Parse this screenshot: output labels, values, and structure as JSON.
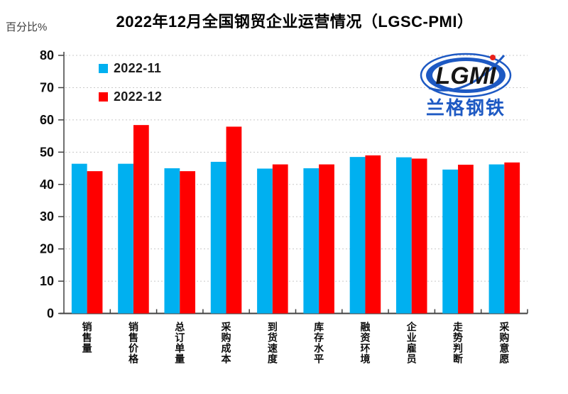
{
  "chart_data": {
    "type": "bar",
    "title": "2022年12月全国钢贸企业运营情况（LGSC-PMI）",
    "ylabel": "百分比%",
    "xlabel": "",
    "categories": [
      "销售量",
      "销售价格",
      "总订单量",
      "采购成本",
      "到货速度",
      "库存水平",
      "融资环境",
      "企业雇员",
      "走势判断",
      "采购意愿"
    ],
    "series": [
      {
        "name": "2022-11",
        "color": "#00B0F0",
        "values": [
          46.4,
          46.4,
          45.0,
          47.0,
          44.9,
          45.0,
          48.5,
          48.4,
          44.6,
          46.2
        ]
      },
      {
        "name": "2022-12",
        "color": "#FF0000",
        "values": [
          44.1,
          58.4,
          44.1,
          57.9,
          46.2,
          46.2,
          49.0,
          48.0,
          46.1,
          46.8
        ]
      }
    ],
    "ylim": [
      0,
      80
    ],
    "ytick_step": 10,
    "yticks": [
      0,
      10,
      20,
      30,
      40,
      50,
      60,
      70,
      80
    ],
    "grid": "horizontal dotted",
    "grid_color": "#c8c8c8",
    "axis_color": "#404040",
    "tick_label_color": "#0d0d0d",
    "legend_position": "top-left inside plot",
    "category_label_orientation": "vertical upright"
  },
  "logo": {
    "text": "LGMI",
    "subtext": "兰格钢铁",
    "brand_blue": "#1d59c3",
    "brand_red": "#e82019"
  }
}
